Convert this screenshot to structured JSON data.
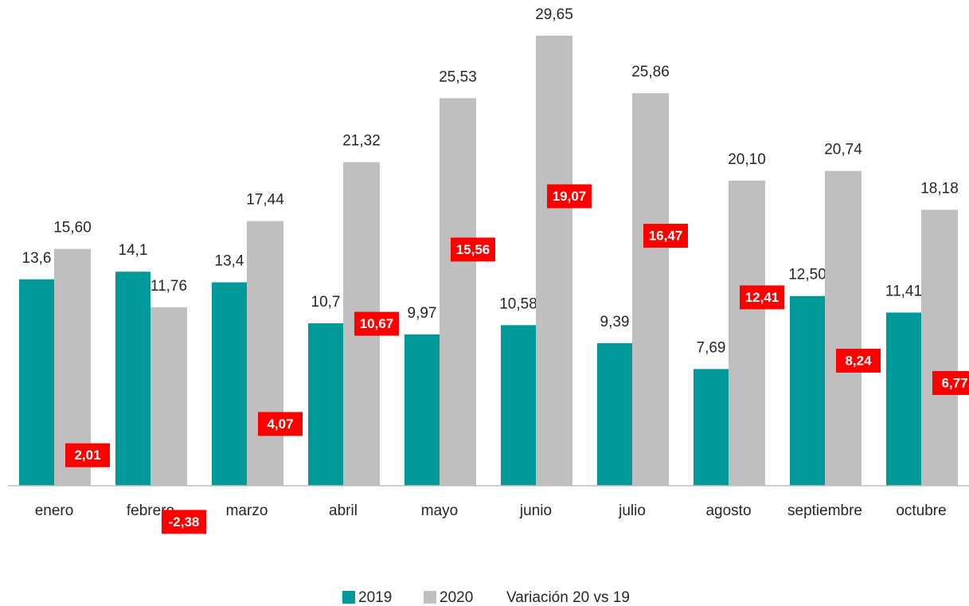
{
  "chart_data": {
    "type": "bar",
    "categories": [
      "enero",
      "febrero",
      "marzo",
      "abril",
      "mayo",
      "junio",
      "julio",
      "agosto",
      "septiembre",
      "octubre"
    ],
    "series": [
      {
        "name": "2019",
        "color": "#009999",
        "values": [
          13.6,
          14.1,
          13.4,
          10.7,
          9.97,
          10.58,
          9.39,
          7.69,
          12.5,
          11.41
        ],
        "value_labels": [
          "13,6",
          "14,1",
          "13,4",
          "10,7",
          "9,97",
          "10,58",
          "9,39",
          "7,69",
          "12,50",
          "11,41"
        ]
      },
      {
        "name": "2020",
        "color": "#bfbfbf",
        "values": [
          15.6,
          11.76,
          17.44,
          21.32,
          25.53,
          29.65,
          25.86,
          20.1,
          20.74,
          18.18
        ],
        "value_labels": [
          "15,60",
          "11,76",
          "17,44",
          "21,32",
          "25,53",
          "29,65",
          "25,86",
          "20,10",
          "20,74",
          "18,18"
        ]
      },
      {
        "name": "Variación 20 vs 19",
        "color": "#ff0000",
        "values": [
          2.01,
          -2.38,
          4.07,
          10.67,
          15.56,
          19.07,
          16.47,
          12.41,
          8.24,
          6.77
        ],
        "value_labels": [
          "2,01",
          "-2,38",
          "4,07",
          "10,67",
          "15,56",
          "19,07",
          "16,47",
          "12,41",
          "8,24",
          "6,77"
        ]
      }
    ],
    "ylim": [
      0,
      32
    ]
  }
}
